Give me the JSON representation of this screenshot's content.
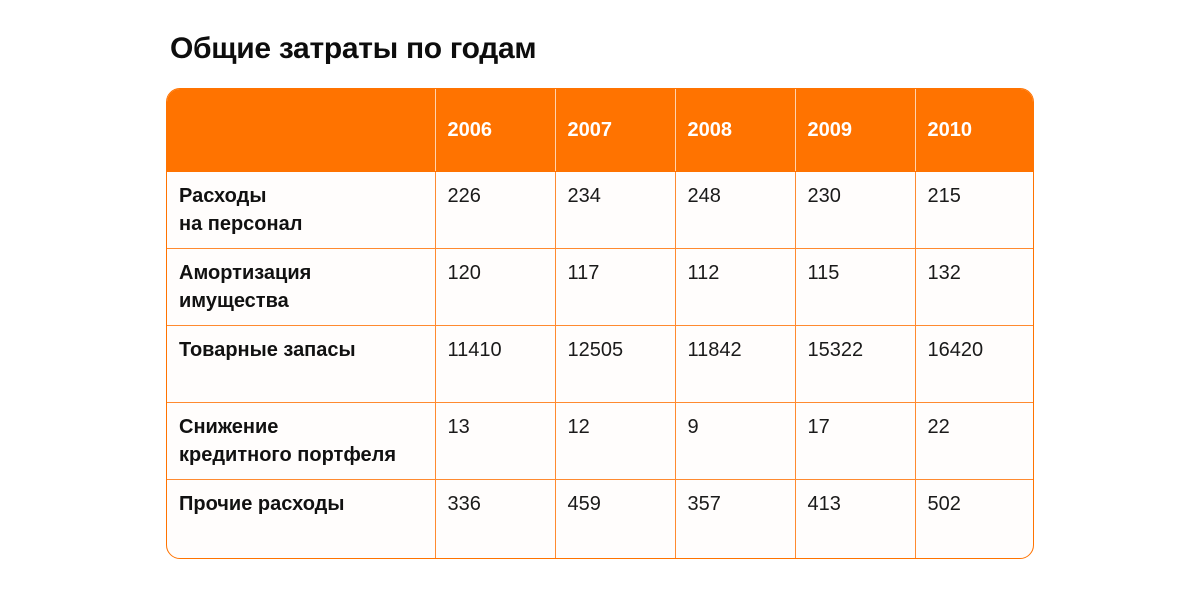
{
  "title": "Общие затраты по годам",
  "table": {
    "corner": "",
    "years": [
      "2006",
      "2007",
      "2008",
      "2009",
      "2010"
    ],
    "rows": [
      {
        "label": "Расходы\nна персонал",
        "values": [
          "226",
          "234",
          "248",
          "230",
          "215"
        ]
      },
      {
        "label": "Амортизация\nимущества",
        "values": [
          "120",
          "117",
          "112",
          "115",
          "132"
        ]
      },
      {
        "label": "Товарные запасы",
        "values": [
          "11410",
          "12505",
          "11842",
          "15322",
          "16420"
        ]
      },
      {
        "label": "Снижение\nкредитного портфеля",
        "values": [
          "13",
          "12",
          "9",
          "17",
          "22"
        ]
      },
      {
        "label": "Прочие расходы",
        "values": [
          "336",
          "459",
          "357",
          "413",
          "502"
        ]
      }
    ]
  },
  "colors": {
    "accent": "#ff7300",
    "header_text": "#ffffff"
  }
}
